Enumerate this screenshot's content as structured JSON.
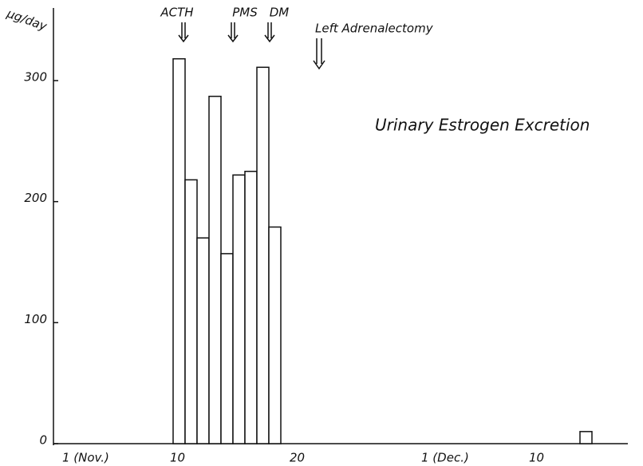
{
  "chart_data": {
    "type": "bar",
    "title": "Urinary Estrogen Excretion",
    "y_label": "μg/day",
    "x": [
      10,
      11,
      12,
      13,
      14,
      15,
      16,
      17,
      18,
      44
    ],
    "values": [
      318,
      218,
      170,
      287,
      157,
      222,
      225,
      311,
      179,
      10
    ],
    "color": "#ffffff",
    "xlim": [
      0,
      48
    ],
    "xticks": [
      {
        "value": 1,
        "label": "1 (Nov.)"
      },
      10,
      20,
      {
        "value": 31,
        "label": "1 (Dec.)"
      },
      {
        "value": 40,
        "label": "10"
      }
    ],
    "ylim": [
      0,
      360
    ],
    "yticks": [
      0,
      100,
      200,
      300
    ],
    "annotations": [
      "ACTH",
      "PMS",
      "DM",
      "Left Adrenalectomy"
    ]
  }
}
